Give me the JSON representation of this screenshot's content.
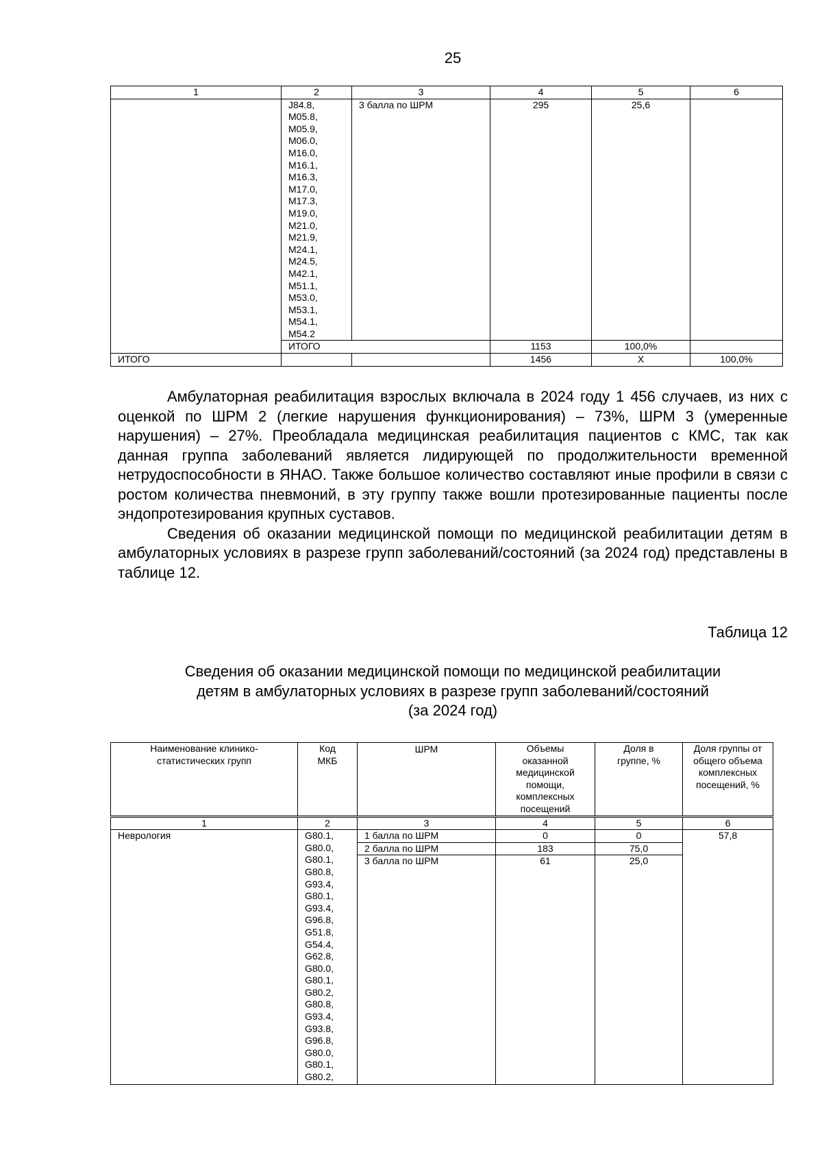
{
  "page_number": "25",
  "table_prev": {
    "col_numbers": [
      "1",
      "2",
      "3",
      "4",
      "5",
      "6"
    ],
    "row": {
      "codes": [
        "J84.8,",
        "M05.8,",
        "M05.9,",
        "M06.0,",
        "M16.0,",
        "M16.1,",
        "M16.3,",
        "M17.0,",
        "M17.3,",
        "M19.0,",
        "M21.0,",
        "M21.9,",
        "M24.1,",
        "M24.5,",
        "M42.1,",
        "M51.1,",
        "M53.0,",
        "M53.1,",
        "M54.1,",
        "M54.2"
      ],
      "shrm": "3 балла по ШРМ",
      "volume": "295",
      "share": "25,6"
    },
    "subtotal": {
      "label": "ИТОГО",
      "volume": "1153",
      "share": "100,0%"
    },
    "total": {
      "label": "ИТОГО",
      "volume": "1456",
      "share": "Х",
      "group_share": "100,0%"
    }
  },
  "paragraphs": [
    "Амбулаторная реабилитация взрослых включала в 2024 году 1 456 случаев, из них с оценкой по ШРМ 2 (легкие нарушения функционирования) – 73%, ШРМ 3 (умеренные нарушения) – 27%. Преобладала медицинская реабилитация пациентов с КМС, так как данная группа заболеваний является лидирующей по продолжительности временной нетрудоспособности в ЯНАО. Также большое количество составляют иные профили в связи с ростом количества пневмоний, в эту группу также вошли протезированные пациенты после эндопротезирования крупных суставов.",
    "Сведения об оказании медицинской помощи по медицинской реабилитации детям в амбулаторных условиях в разрезе групп заболеваний/состояний (за 2024 год) представлены в таблице 12."
  ],
  "table12": {
    "number_label": "Таблица 12",
    "caption": [
      "Сведения об оказании медицинской помощи по медицинской реабилитации",
      "детям в амбулаторных условиях в разрезе групп заболеваний/состояний",
      "(за 2024 год)"
    ],
    "headers": [
      "Наименование клинико-статистических групп",
      "Код МКБ",
      "ШРМ",
      "Объемы оказанной медицинской помощи, комплексных посещений",
      "Доля в группе, %",
      "Доля группы от общего объема комплексных посещений, %"
    ],
    "col_numbers": [
      "1",
      "2",
      "3",
      "4",
      "5",
      "6"
    ],
    "group": {
      "name": "Неврология",
      "codes": [
        "G80.1,",
        "G80.0,",
        "G80.1,",
        "G80.8,",
        "G93.4,",
        "G80.1,",
        "G93.4,",
        "G96.8,",
        "G51.8,",
        "G54.4,",
        "G62.8,",
        "G80.0,",
        "G80.1,",
        "G80.2,",
        "G80.8,",
        "G93.4,",
        "G93.8,",
        "G96.8,",
        "G80.0,",
        "G80.1,",
        "G80.2,"
      ],
      "group_share": "57,8",
      "rows": [
        {
          "shrm": "1 балла по ШРМ",
          "volume": "0",
          "share": "0"
        },
        {
          "shrm": "2 балла по ШРМ",
          "volume": "183",
          "share": "75,0"
        },
        {
          "shrm": "3 балла по ШРМ",
          "volume": "61",
          "share": "25,0"
        }
      ]
    }
  }
}
